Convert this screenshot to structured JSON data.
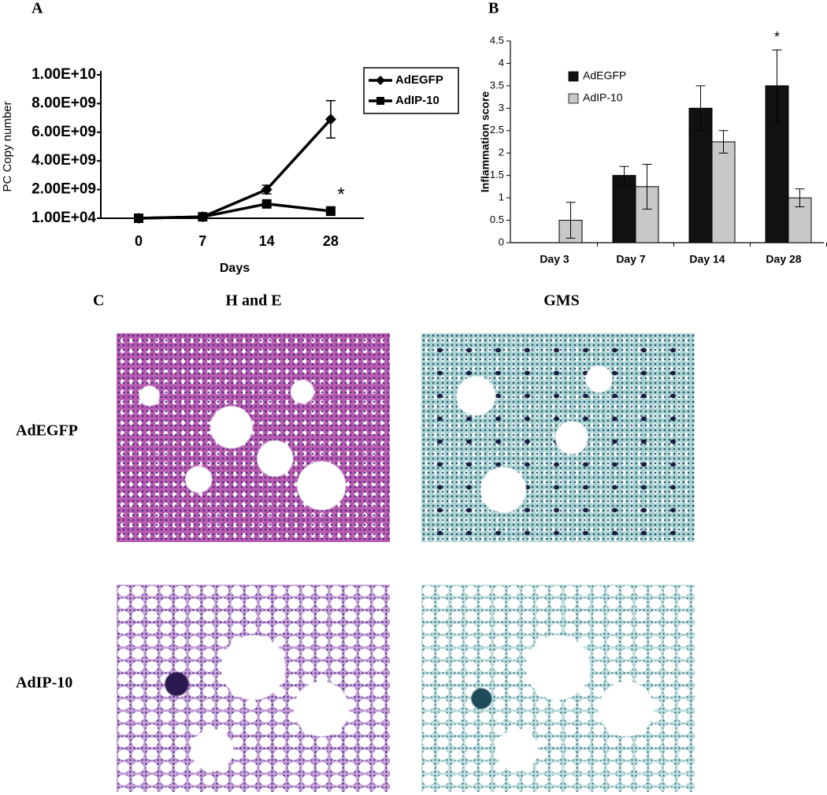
{
  "panel_labels": [
    "A",
    "B",
    "C"
  ],
  "chart_data": [
    {
      "type": "line",
      "categories": [
        "0",
        "7",
        "14",
        "28"
      ],
      "x_label": "Days",
      "y_label": "PC Copy number",
      "ylim": [
        10000,
        10000000000
      ],
      "yticks": [
        {
          "value": 10000,
          "label": "1.00E+04"
        },
        {
          "value": 2000000000,
          "label": "2.00E+09"
        },
        {
          "value": 4000000000,
          "label": "4.00E+09"
        },
        {
          "value": 6000000000,
          "label": "6.00E+09"
        },
        {
          "value": 8000000000,
          "label": "8.00E+09"
        },
        {
          "value": 10000000000,
          "label": "1.00E+10"
        }
      ],
      "legend": "right",
      "series": [
        {
          "name": "AdEGFP",
          "color": "#000000",
          "marker": "diamond",
          "values": [
            10000,
            100000000,
            2000000000,
            6900000000
          ],
          "errors": [
            null,
            null,
            300000000,
            1300000000
          ]
        },
        {
          "name": "AdIP-10",
          "color": "#000000",
          "marker": "square",
          "values": [
            10000,
            100000000,
            1000000000,
            500000000
          ],
          "errors": [
            null,
            null,
            200000000,
            300000000
          ]
        }
      ],
      "annotations": [
        "*"
      ]
    },
    {
      "type": "bar",
      "categories": [
        "Day 3",
        "Day 7",
        "Day 14",
        "Day 28"
      ],
      "y_label": "Inflammation score",
      "ylim": [
        0,
        4.5
      ],
      "yticks": [
        0,
        0.5,
        1,
        1.5,
        2,
        2.5,
        3,
        3.5,
        4,
        4.5
      ],
      "legend": "upper left",
      "series": [
        {
          "name": "AdEGFP",
          "color": "#111111",
          "values": [
            0,
            1.5,
            3,
            3.5
          ],
          "errors": [
            null,
            0.2,
            0.5,
            0.8
          ]
        },
        {
          "name": "AdIP-10",
          "color": "#c8c8c8",
          "values": [
            0.5,
            1.25,
            2.25,
            1
          ],
          "errors": [
            0.4,
            0.5,
            0.25,
            0.2
          ]
        }
      ],
      "annotations": [
        "*"
      ]
    }
  ],
  "micrographs": {
    "columns": [
      "H and E",
      "GMS"
    ],
    "rows": [
      "AdEGFP",
      "AdIP-10"
    ]
  }
}
